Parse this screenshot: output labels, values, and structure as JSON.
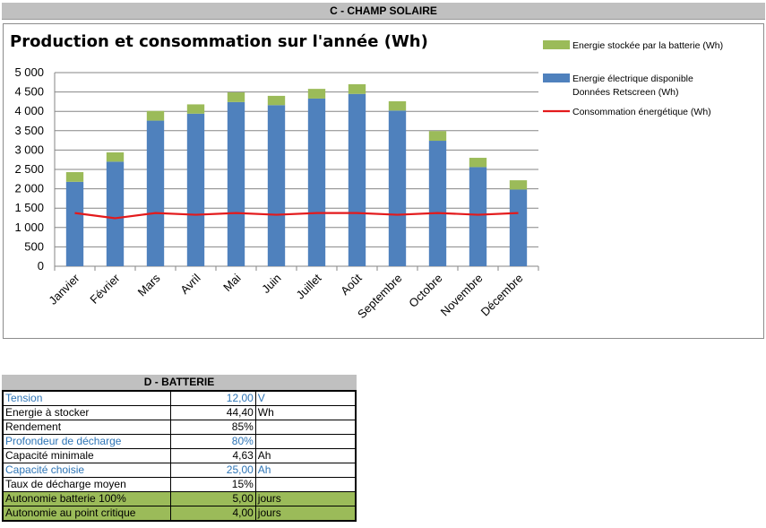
{
  "section_c": {
    "header": "C - CHAMP SOLAIRE"
  },
  "chart_data": {
    "type": "bar",
    "title": "Production et consommation sur l'année (Wh)",
    "categories": [
      "Janvier",
      "Février",
      "Mars",
      "Avril",
      "Mai",
      "Juin",
      "Juillet",
      "Août",
      "Septembre",
      "Octobre",
      "Novembre",
      "Décembre"
    ],
    "ylim": [
      0,
      5000
    ],
    "y_ticks": [
      "0",
      "500",
      "1 000",
      "1 500",
      "2 000",
      "2 500",
      "3 000",
      "3 500",
      "4 000",
      "4 500",
      "5 000"
    ],
    "grid": true,
    "stacked": true,
    "legend_placement": "right",
    "series": [
      {
        "name": "Energie électrique disponible Données Retscreen (Wh)",
        "legend_lines": [
          "Energie électrique disponible",
          "Données Retscreen (Wh)"
        ],
        "kind": "bar",
        "color": "#4f81bd",
        "values": [
          2180,
          2700,
          3760,
          3940,
          4240,
          4160,
          4330,
          4450,
          4020,
          3240,
          2560,
          1980
        ]
      },
      {
        "name": "Energie stockée par la batterie (Wh)",
        "legend_lines": [
          "Energie stockée par la batterie (Wh)"
        ],
        "kind": "bar",
        "color": "#9bbb59",
        "values": [
          250,
          240,
          250,
          240,
          250,
          240,
          250,
          250,
          240,
          250,
          240,
          240
        ]
      },
      {
        "name": "Consommation énergétique (Wh)",
        "legend_lines": [
          "Consommation énergétique (Wh)"
        ],
        "kind": "line",
        "color": "#e31a1c",
        "values": [
          1375,
          1240,
          1375,
          1330,
          1375,
          1330,
          1375,
          1375,
          1330,
          1375,
          1330,
          1375
        ]
      }
    ]
  },
  "section_d": {
    "header": "D - BATTERIE",
    "rows": [
      {
        "label": "Tension",
        "value": "12,00",
        "unit": "V",
        "style": "blue"
      },
      {
        "label": "Energie à stocker",
        "value": "44,40",
        "unit": "Wh",
        "style": "normal"
      },
      {
        "label": "Rendement",
        "value": "85%",
        "unit": "",
        "style": "normal"
      },
      {
        "label": "Profondeur de décharge",
        "value": "80%",
        "unit": "",
        "style": "blue"
      },
      {
        "label": "Capacité minimale",
        "value": "4,63",
        "unit": "Ah",
        "style": "normal"
      },
      {
        "label": "Capacité choisie",
        "value": "25,00",
        "unit": "Ah",
        "style": "blue"
      },
      {
        "label": "Taux de décharge moyen",
        "value": "15%",
        "unit": "",
        "style": "normal"
      },
      {
        "label": "Autonomie batterie 100%",
        "value": "5,00",
        "unit": "jours",
        "style": "green"
      },
      {
        "label": "Autonomie au point critique",
        "value": "4,00",
        "unit": "jours",
        "style": "green"
      }
    ]
  }
}
